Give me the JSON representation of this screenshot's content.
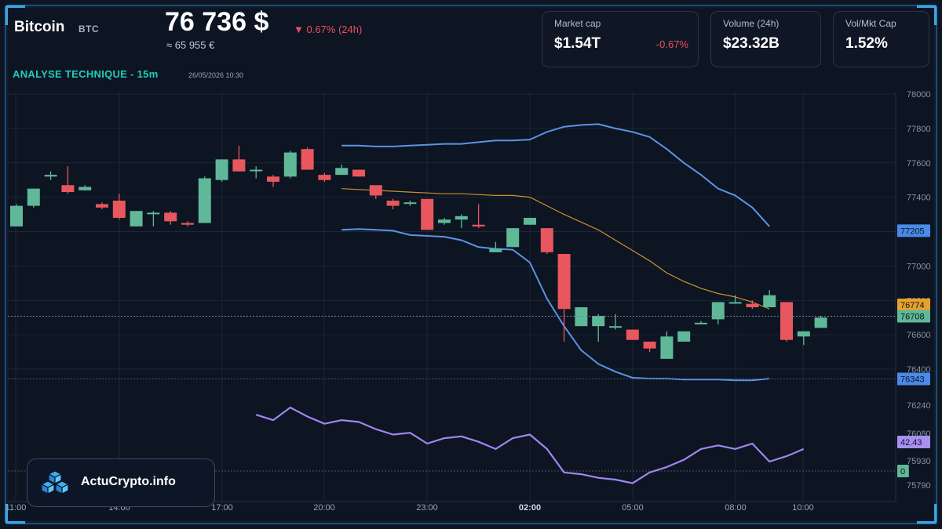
{
  "header": {
    "coin_name": "Bitcoin",
    "coin_symbol": "BTC",
    "price": "76 736 $",
    "change_24h": "▼ 0.67% (24h)",
    "price_eur": "≈ 65 955 €",
    "analysis_label": "ANALYSE TECHNIQUE - 15m",
    "datetime": "26/05/2026 10:30"
  },
  "stats": [
    {
      "label": "Market cap",
      "value": "$1.54T",
      "change": "-0.67%"
    },
    {
      "label": "Volume (24h)",
      "value": "$23.32B",
      "change": ""
    },
    {
      "label": "Vol/Mkt Cap",
      "value": "1.52%",
      "change": ""
    }
  ],
  "brand": {
    "name": "ActuCrypto.info"
  },
  "colors": {
    "up": "#5fb897",
    "down": "#e8575e",
    "band": "#5b93e6",
    "mid": "#c8932f",
    "rsi": "#9d87ef",
    "price_badge": "#5fb897",
    "mid_badge": "#e8a12b",
    "band_badge": "#4a8ae8",
    "rsi_badge": "#a890f0"
  },
  "chart_data": {
    "type": "candlestick",
    "x_ticks": [
      "11:00",
      "14:00",
      "17:00",
      "20:00",
      "23:00",
      "02:00",
      "05:00",
      "08:00",
      "10:00"
    ],
    "y_ticks": [
      78000,
      77800,
      77600,
      77400,
      77200,
      77000,
      76800,
      76600,
      76400
    ],
    "y_range": [
      76350,
      78000
    ],
    "candles": [
      {
        "t": 0,
        "o": 77230,
        "h": 77360,
        "l": 77230,
        "c": 77350
      },
      {
        "t": 1,
        "o": 77350,
        "h": 77450,
        "l": 77340,
        "c": 77450
      },
      {
        "t": 2,
        "o": 77520,
        "h": 77550,
        "l": 77500,
        "c": 77530
      },
      {
        "t": 3,
        "o": 77470,
        "h": 77580,
        "l": 77420,
        "c": 77430
      },
      {
        "t": 4,
        "o": 77440,
        "h": 77470,
        "l": 77440,
        "c": 77460
      },
      {
        "t": 5,
        "o": 77360,
        "h": 77370,
        "l": 77330,
        "c": 77340
      },
      {
        "t": 6,
        "o": 77380,
        "h": 77420,
        "l": 77270,
        "c": 77280
      },
      {
        "t": 7,
        "o": 77230,
        "h": 77320,
        "l": 77230,
        "c": 77320
      },
      {
        "t": 8,
        "o": 77310,
        "h": 77320,
        "l": 77230,
        "c": 77310
      },
      {
        "t": 9,
        "o": 77310,
        "h": 77320,
        "l": 77240,
        "c": 77260
      },
      {
        "t": 10,
        "o": 77250,
        "h": 77260,
        "l": 77230,
        "c": 77240
      },
      {
        "t": 11,
        "o": 77250,
        "h": 77520,
        "l": 77250,
        "c": 77510
      },
      {
        "t": 12,
        "o": 77500,
        "h": 77620,
        "l": 77490,
        "c": 77620
      },
      {
        "t": 13,
        "o": 77620,
        "h": 77700,
        "l": 77550,
        "c": 77550
      },
      {
        "t": 14,
        "o": 77560,
        "h": 77580,
        "l": 77510,
        "c": 77560
      },
      {
        "t": 15,
        "o": 77520,
        "h": 77530,
        "l": 77460,
        "c": 77490
      },
      {
        "t": 16,
        "o": 77520,
        "h": 77670,
        "l": 77510,
        "c": 77660
      },
      {
        "t": 17,
        "o": 77680,
        "h": 77690,
        "l": 77560,
        "c": 77560
      },
      {
        "t": 18,
        "o": 77530,
        "h": 77540,
        "l": 77490,
        "c": 77500
      },
      {
        "t": 19,
        "o": 77530,
        "h": 77590,
        "l": 77530,
        "c": 77570
      },
      {
        "t": 20,
        "o": 77560,
        "h": 77560,
        "l": 77520,
        "c": 77520
      },
      {
        "t": 21,
        "o": 77470,
        "h": 77470,
        "l": 77390,
        "c": 77410
      },
      {
        "t": 22,
        "o": 77380,
        "h": 77390,
        "l": 77330,
        "c": 77350
      },
      {
        "t": 23,
        "o": 77370,
        "h": 77380,
        "l": 77350,
        "c": 77370
      },
      {
        "t": 24,
        "o": 77390,
        "h": 77390,
        "l": 77210,
        "c": 77210
      },
      {
        "t": 25,
        "o": 77250,
        "h": 77280,
        "l": 77240,
        "c": 77270
      },
      {
        "t": 26,
        "o": 77270,
        "h": 77300,
        "l": 77220,
        "c": 77290
      },
      {
        "t": 27,
        "o": 77240,
        "h": 77360,
        "l": 77220,
        "c": 77230
      },
      {
        "t": 28,
        "o": 77080,
        "h": 77140,
        "l": 77080,
        "c": 77100
      },
      {
        "t": 29,
        "o": 77110,
        "h": 77220,
        "l": 77110,
        "c": 77220
      },
      {
        "t": 30,
        "o": 77240,
        "h": 77280,
        "l": 77240,
        "c": 77280
      },
      {
        "t": 31,
        "o": 77220,
        "h": 77220,
        "l": 77070,
        "c": 77080
      },
      {
        "t": 32,
        "o": 77070,
        "h": 77070,
        "l": 76560,
        "c": 76750
      },
      {
        "t": 33,
        "o": 76650,
        "h": 76760,
        "l": 76650,
        "c": 76760
      },
      {
        "t": 34,
        "o": 76650,
        "h": 76720,
        "l": 76560,
        "c": 76710
      },
      {
        "t": 35,
        "o": 76650,
        "h": 76720,
        "l": 76630,
        "c": 76650
      },
      {
        "t": 36,
        "o": 76630,
        "h": 76630,
        "l": 76570,
        "c": 76570
      },
      {
        "t": 37,
        "o": 76560,
        "h": 76560,
        "l": 76500,
        "c": 76520
      },
      {
        "t": 38,
        "o": 76460,
        "h": 76620,
        "l": 76460,
        "c": 76590
      },
      {
        "t": 39,
        "o": 76560,
        "h": 76620,
        "l": 76560,
        "c": 76620
      },
      {
        "t": 40,
        "o": 76670,
        "h": 76680,
        "l": 76660,
        "c": 76670
      },
      {
        "t": 41,
        "o": 76690,
        "h": 76790,
        "l": 76660,
        "c": 76790
      },
      {
        "t": 42,
        "o": 76790,
        "h": 76830,
        "l": 76780,
        "c": 76790
      },
      {
        "t": 43,
        "o": 76780,
        "h": 76800,
        "l": 76750,
        "c": 76760
      },
      {
        "t": 44,
        "o": 76760,
        "h": 76860,
        "l": 76760,
        "c": 76830
      },
      {
        "t": 45,
        "o": 76790,
        "h": 76790,
        "l": 76560,
        "c": 76570
      },
      {
        "t": 46,
        "o": 76590,
        "h": 76620,
        "l": 76540,
        "c": 76620
      },
      {
        "t": 47,
        "o": 76640,
        "h": 76710,
        "l": 76640,
        "c": 76700
      }
    ],
    "bollinger": {
      "start": 19,
      "upper": [
        77700,
        77700,
        77695,
        77695,
        77700,
        77705,
        77710,
        77710,
        77720,
        77730,
        77730,
        77735,
        77780,
        77810,
        77820,
        77825,
        77800,
        77780,
        77750,
        77680,
        77600,
        77530,
        77450,
        77410,
        77340,
        77230
      ],
      "middle": [
        77450,
        77445,
        77440,
        77435,
        77430,
        77425,
        77420,
        77420,
        77415,
        77410,
        77410,
        77400,
        77350,
        77300,
        77255,
        77210,
        77150,
        77090,
        77030,
        76960,
        76910,
        76870,
        76840,
        76820,
        76790,
        76750
      ],
      "lower": [
        77210,
        77215,
        77210,
        77205,
        77180,
        77175,
        77170,
        77150,
        77110,
        77100,
        77095,
        77020,
        76810,
        76650,
        76510,
        76430,
        76385,
        76350,
        76345,
        76345,
        76340,
        76340,
        76340,
        76335,
        76335,
        76345
      ]
    },
    "rsi": {
      "start": 14,
      "values": [
        56,
        53,
        60,
        55,
        51,
        53,
        52,
        48,
        45,
        46,
        40,
        43,
        44,
        41,
        37,
        43,
        45,
        37,
        24,
        23,
        21,
        20,
        18,
        24,
        27,
        31,
        37,
        39,
        37,
        40,
        30,
        33,
        37
      ]
    },
    "rsi_y_labels": [
      "76240",
      "76080",
      "75930",
      "75790"
    ],
    "badges": {
      "price": "76708",
      "middle": "76774",
      "upper": "77205",
      "lower": "76343",
      "rsi": "42.43",
      "zero": "0"
    }
  }
}
